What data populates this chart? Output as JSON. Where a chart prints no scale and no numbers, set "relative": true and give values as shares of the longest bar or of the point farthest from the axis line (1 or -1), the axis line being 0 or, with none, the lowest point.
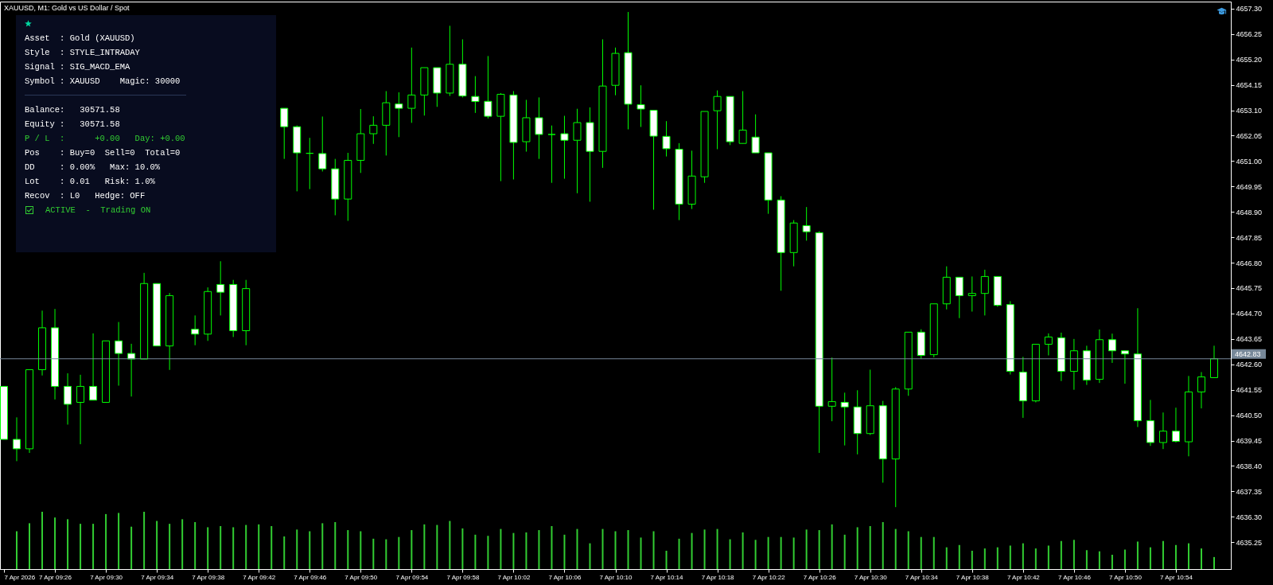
{
  "chart_data": [
    {
      "type": "candlestick",
      "title": "XAUUSD, M1: Gold vs US Dollar / Spot",
      "color": "#00ff00",
      "x": [
        "2026-04-07T09:22",
        "2026-04-07T09:23",
        "2026-04-07T09:24",
        "2026-04-07T09:25",
        "2026-04-07T09:26",
        "2026-04-07T09:27",
        "2026-04-07T09:28",
        "2026-04-07T09:29",
        "2026-04-07T09:30",
        "2026-04-07T09:31",
        "2026-04-07T09:32",
        "2026-04-07T09:33",
        "2026-04-07T09:34",
        "2026-04-07T09:35",
        "2026-04-07T09:37",
        "2026-04-07T09:38",
        "2026-04-07T09:39",
        "2026-04-07T09:40",
        "2026-04-07T09:41",
        "2026-04-07T09:44",
        "2026-04-07T09:45",
        "2026-04-07T09:46",
        "2026-04-07T09:47",
        "2026-04-07T09:48",
        "2026-04-07T09:49",
        "2026-04-07T09:50",
        "2026-04-07T09:51",
        "2026-04-07T09:52",
        "2026-04-07T09:53",
        "2026-04-07T09:54",
        "2026-04-07T09:55",
        "2026-04-07T09:56",
        "2026-04-07T09:57",
        "2026-04-07T09:58",
        "2026-04-07T09:59",
        "2026-04-07T10:00",
        "2026-04-07T10:01",
        "2026-04-07T10:02",
        "2026-04-07T10:03",
        "2026-04-07T10:04",
        "2026-04-07T10:05",
        "2026-04-07T10:06",
        "2026-04-07T10:07",
        "2026-04-07T10:08",
        "2026-04-07T10:09",
        "2026-04-07T10:10",
        "2026-04-07T10:11",
        "2026-04-07T10:12",
        "2026-04-07T10:13",
        "2026-04-07T10:14",
        "2026-04-07T10:15",
        "2026-04-07T10:16",
        "2026-04-07T10:17",
        "2026-04-07T10:18",
        "2026-04-07T10:19",
        "2026-04-07T10:20",
        "2026-04-07T10:21",
        "2026-04-07T10:22",
        "2026-04-07T10:23",
        "2026-04-07T10:24",
        "2026-04-07T10:25",
        "2026-04-07T10:26",
        "2026-04-07T10:27",
        "2026-04-07T10:28",
        "2026-04-07T10:29",
        "2026-04-07T10:30",
        "2026-04-07T10:31",
        "2026-04-07T10:32",
        "2026-04-07T10:33",
        "2026-04-07T10:34",
        "2026-04-07T10:35",
        "2026-04-07T10:36",
        "2026-04-07T10:37",
        "2026-04-07T10:38",
        "2026-04-07T10:39",
        "2026-04-07T10:40",
        "2026-04-07T10:41",
        "2026-04-07T10:42",
        "2026-04-07T10:43",
        "2026-04-07T10:44",
        "2026-04-07T10:45",
        "2026-04-07T10:46",
        "2026-04-07T10:47",
        "2026-04-07T10:48",
        "2026-04-07T10:49",
        "2026-04-07T10:50",
        "2026-04-07T10:51",
        "2026-04-07T10:52",
        "2026-04-07T10:53",
        "2026-04-07T10:54",
        "2026-04-07T10:55",
        "2026-04-07T10:56",
        "2026-04-07T10:57"
      ],
      "ohlc": [
        [
          4641.69,
          4641.69,
          4639.5,
          4639.5
        ],
        [
          4639.5,
          4640.41,
          4638.6,
          4639.11
        ],
        [
          4639.11,
          4642.38,
          4638.94,
          4642.38
        ],
        [
          4642.38,
          4644.82,
          4642.14,
          4644.11
        ],
        [
          4644.11,
          4644.89,
          4641.15,
          4641.69
        ],
        [
          4641.69,
          4642.23,
          4640.11,
          4640.95
        ],
        [
          4641.03,
          4642.17,
          4639.3,
          4641.69
        ],
        [
          4641.69,
          4643.88,
          4641.12,
          4641.12
        ],
        [
          4641.03,
          4643.57,
          4641.03,
          4643.57
        ],
        [
          4643.57,
          4644.35,
          4641.72,
          4643.05
        ],
        [
          4643.05,
          4643.45,
          4641.27,
          4642.82
        ],
        [
          4642.82,
          4646.38,
          4642.82,
          4645.94
        ],
        [
          4645.94,
          4645.94,
          4643.36,
          4643.36
        ],
        [
          4643.36,
          4645.55,
          4642.37,
          4645.44
        ],
        [
          4644.05,
          4644.62,
          4643.39,
          4643.85
        ],
        [
          4643.85,
          4645.78,
          4643.57,
          4645.61
        ],
        [
          4645.9,
          4646.86,
          4644.62,
          4645.58
        ],
        [
          4645.9,
          4646.09,
          4643.73,
          4643.99
        ],
        [
          4643.99,
          4646.09,
          4643.39,
          4645.73
        ],
        [
          4653.18,
          4653.18,
          4651.09,
          4652.42
        ],
        [
          4652.42,
          4652.47,
          4649.75,
          4651.34
        ],
        [
          4651.32,
          4651.96,
          4649.84,
          4651.32
        ],
        [
          4651.31,
          4652.84,
          4650.57,
          4650.68
        ],
        [
          4650.68,
          4651.09,
          4648.76,
          4649.43
        ],
        [
          4649.43,
          4651.34,
          4648.53,
          4651.03
        ],
        [
          4651.03,
          4653.15,
          4650.51,
          4652.13
        ],
        [
          4652.13,
          4652.85,
          4651.71,
          4652.48
        ],
        [
          4652.48,
          4653.89,
          4651.23,
          4653.41
        ],
        [
          4653.36,
          4653.84,
          4651.99,
          4653.18
        ],
        [
          4653.18,
          4655.69,
          4652.58,
          4653.73
        ],
        [
          4653.73,
          4654.86,
          4652.88,
          4654.86
        ],
        [
          4654.86,
          4654.86,
          4653.24,
          4653.81
        ],
        [
          4653.81,
          4656.59,
          4653.69,
          4655.0
        ],
        [
          4655.0,
          4656.03,
          4653.63,
          4653.69
        ],
        [
          4653.67,
          4654.51,
          4652.99,
          4653.46
        ],
        [
          4653.47,
          4655.34,
          4652.76,
          4652.85
        ],
        [
          4652.85,
          4653.81,
          4650.17,
          4653.76
        ],
        [
          4653.73,
          4653.89,
          4650.24,
          4651.77
        ],
        [
          4651.8,
          4653.53,
          4651.39,
          4652.79
        ],
        [
          4652.79,
          4653.63,
          4651.09,
          4652.1
        ],
        [
          4652.1,
          4652.47,
          4650.1,
          4652.1
        ],
        [
          4652.13,
          4652.87,
          4650.27,
          4651.86
        ],
        [
          4651.86,
          4653.16,
          4649.67,
          4652.59
        ],
        [
          4652.59,
          4653.22,
          4649.32,
          4651.4
        ],
        [
          4651.4,
          4656.03,
          4650.72,
          4654.1
        ],
        [
          4654.13,
          4655.69,
          4653.72,
          4655.45
        ],
        [
          4655.48,
          4657.16,
          4652.31,
          4653.35
        ],
        [
          4653.33,
          4654.13,
          4652.41,
          4653.15
        ],
        [
          4653.1,
          4653.1,
          4648.99,
          4652.03
        ],
        [
          4652.02,
          4652.65,
          4651.19,
          4651.51
        ],
        [
          4651.49,
          4651.74,
          4648.56,
          4649.22
        ],
        [
          4649.22,
          4651.43,
          4649.02,
          4650.38
        ],
        [
          4650.35,
          4653.05,
          4650.1,
          4653.05
        ],
        [
          4653.08,
          4653.92,
          4651.49,
          4653.67
        ],
        [
          4653.67,
          4653.67,
          4651.66,
          4651.8
        ],
        [
          4651.73,
          4653.89,
          4651.73,
          4652.28
        ],
        [
          4651.99,
          4652.93,
          4651.34,
          4651.34
        ],
        [
          4651.34,
          4651.34,
          4648.82,
          4649.39
        ],
        [
          4649.39,
          4649.55,
          4645.64,
          4647.22
        ],
        [
          4647.22,
          4648.56,
          4646.65,
          4648.44
        ],
        [
          4648.33,
          4649.1,
          4647.71,
          4648.08
        ],
        [
          4648.04,
          4648.1,
          4638.94,
          4640.87
        ],
        [
          4640.87,
          4642.88,
          4640.25,
          4641.06
        ],
        [
          4641.03,
          4641.43,
          4639.25,
          4640.84
        ],
        [
          4640.84,
          4641.53,
          4638.88,
          4639.74
        ],
        [
          4639.74,
          4642.38,
          4639.68,
          4640.89
        ],
        [
          4640.89,
          4641.09,
          4637.71,
          4638.69
        ],
        [
          4638.69,
          4641.66,
          4636.7,
          4641.58
        ],
        [
          4641.58,
          4643.93,
          4641.3,
          4643.93
        ],
        [
          4643.93,
          4644.05,
          4642.82,
          4642.97
        ],
        [
          4643.0,
          4645.1,
          4642.89,
          4645.1
        ],
        [
          4645.1,
          4646.65,
          4644.87,
          4646.2
        ],
        [
          4646.2,
          4646.2,
          4644.51,
          4645.44
        ],
        [
          4645.44,
          4646.23,
          4644.78,
          4645.53
        ],
        [
          4645.53,
          4646.51,
          4644.62,
          4646.23
        ],
        [
          4646.23,
          4646.23,
          4644.98,
          4645.04
        ],
        [
          4645.07,
          4645.21,
          4642.18,
          4642.31
        ],
        [
          4642.28,
          4642.91,
          4640.39,
          4641.09
        ],
        [
          4641.09,
          4643.43,
          4641.03,
          4643.43
        ],
        [
          4643.43,
          4643.88,
          4642.97,
          4643.73
        ],
        [
          4643.7,
          4643.91,
          4641.91,
          4642.31
        ],
        [
          4642.31,
          4643.65,
          4641.55,
          4643.16
        ],
        [
          4643.16,
          4643.37,
          4641.75,
          4641.95
        ],
        [
          4641.98,
          4644.04,
          4641.83,
          4643.62
        ],
        [
          4643.62,
          4643.87,
          4642.66,
          4643.16
        ],
        [
          4643.16,
          4643.16,
          4641.8,
          4643.03
        ],
        [
          4643.03,
          4644.92,
          4640.01,
          4640.27
        ],
        [
          4640.27,
          4641.13,
          4639.23,
          4639.37
        ],
        [
          4639.37,
          4640.61,
          4639.1,
          4639.84
        ],
        [
          4639.84,
          4640.81,
          4639.37,
          4639.42
        ],
        [
          4639.4,
          4642.12,
          4638.8,
          4641.46
        ],
        [
          4641.46,
          4642.28,
          4640.78,
          4642.08
        ],
        [
          4642.05,
          4643.37,
          4642.05,
          4642.83
        ]
      ],
      "colors": [
        "#ffffff",
        "#ffffff",
        "#000000",
        "#000000",
        "#ffffff",
        "#ffffff",
        "#000000",
        "#ffffff",
        "#000000",
        "#ffffff",
        "#ffffff",
        "#000000",
        "#ffffff",
        "#000000",
        "#ffffff",
        "#000000",
        "#ffffff",
        "#ffffff",
        "#000000",
        "#ffffff",
        "#ffffff",
        "#00ff00",
        "#ffffff",
        "#ffffff",
        "#000000",
        "#000000",
        "#000000",
        "#000000",
        "#ffffff",
        "#000000",
        "#000000",
        "#ffffff",
        "#000000",
        "#ffffff",
        "#ffffff",
        "#ffffff",
        "#000000",
        "#ffffff",
        "#000000",
        "#ffffff",
        "#00ff00",
        "#ffffff",
        "#000000",
        "#ffffff",
        "#000000",
        "#000000",
        "#ffffff",
        "#ffffff",
        "#ffffff",
        "#ffffff",
        "#ffffff",
        "#000000",
        "#000000",
        "#000000",
        "#ffffff",
        "#000000",
        "#ffffff",
        "#ffffff",
        "#ffffff",
        "#000000",
        "#ffffff",
        "#ffffff",
        "#000000",
        "#ffffff",
        "#ffffff",
        "#000000",
        "#ffffff",
        "#000000",
        "#000000",
        "#ffffff",
        "#000000",
        "#000000",
        "#ffffff",
        "#000000",
        "#000000",
        "#ffffff",
        "#ffffff",
        "#ffffff",
        "#000000",
        "#000000",
        "#ffffff",
        "#000000",
        "#ffffff",
        "#000000",
        "#ffffff",
        "#ffffff",
        "#ffffff",
        "#ffffff",
        "#000000",
        "#ffffff",
        "#000000",
        "#000000",
        "#000000"
      ],
      "xlim": [
        "2026-04-07T09:22",
        "2026-04-07T10:58"
      ],
      "xticks": [
        {
          "value": "2026-04-07T09:22",
          "label": "7 Apr 2026"
        },
        {
          "value": "2026-04-07T09:26",
          "label": "7 Apr 09:26"
        },
        {
          "value": "2026-04-07T09:30",
          "label": "7 Apr 09:30"
        },
        {
          "value": "2026-04-07T09:34",
          "label": "7 Apr 09:34"
        },
        {
          "value": "2026-04-07T09:38",
          "label": "7 Apr 09:38"
        },
        {
          "value": "2026-04-07T09:42",
          "label": "7 Apr 09:42"
        },
        {
          "value": "2026-04-07T09:46",
          "label": "7 Apr 09:46"
        },
        {
          "value": "2026-04-07T09:50",
          "label": "7 Apr 09:50"
        },
        {
          "value": "2026-04-07T09:54",
          "label": "7 Apr 09:54"
        },
        {
          "value": "2026-04-07T09:58",
          "label": "7 Apr 09:58"
        },
        {
          "value": "2026-04-07T10:02",
          "label": "7 Apr 10:02"
        },
        {
          "value": "2026-04-07T10:06",
          "label": "7 Apr 10:06"
        },
        {
          "value": "2026-04-07T10:10",
          "label": "7 Apr 10:10"
        },
        {
          "value": "2026-04-07T10:14",
          "label": "7 Apr 10:14"
        },
        {
          "value": "2026-04-07T10:18",
          "label": "7 Apr 10:18"
        },
        {
          "value": "2026-04-07T10:22",
          "label": "7 Apr 10:22"
        },
        {
          "value": "2026-04-07T10:26",
          "label": "7 Apr 10:26"
        },
        {
          "value": "2026-04-07T10:30",
          "label": "7 Apr 10:30"
        },
        {
          "value": "2026-04-07T10:34",
          "label": "7 Apr 10:34"
        },
        {
          "value": "2026-04-07T10:38",
          "label": "7 Apr 10:38"
        },
        {
          "value": "2026-04-07T10:42",
          "label": "7 Apr 10:42"
        },
        {
          "value": "2026-04-07T10:46",
          "label": "7 Apr 10:46"
        },
        {
          "value": "2026-04-07T10:50",
          "label": "7 Apr 10:50"
        },
        {
          "value": "2026-04-07T10:54",
          "label": "7 Apr 10:54"
        }
      ],
      "ylim": [
        4634.14,
        4657.59
      ],
      "yticks": [
        4635.25,
        {
          "value": 4636.3,
          "label": "4636.30"
        },
        4637.35,
        {
          "value": 4638.4,
          "label": "4638.40"
        },
        4639.45,
        {
          "value": 4640.5,
          "label": "4640.50"
        },
        4641.55,
        {
          "value": 4642.6,
          "label": "4642.60"
        },
        4643.65,
        {
          "value": 4644.7,
          "label": "4644.70"
        },
        4645.75,
        {
          "value": 4646.8,
          "label": "4646.80"
        },
        4647.85,
        {
          "value": 4648.9,
          "label": "4648.90"
        },
        4649.95,
        {
          "value": 4651.0,
          "label": "4651.00"
        },
        4652.05,
        {
          "value": 4653.1,
          "label": "4653.10"
        },
        4654.15,
        {
          "value": 4655.2,
          "label": "4655.20"
        },
        4656.25,
        {
          "value": 4657.3,
          "label": "4657.30"
        }
      ],
      "ref_lines": [
        {
          "axis": "y",
          "value": 4642.83,
          "label": "4642.83",
          "color": "#778899"
        }
      ]
    },
    {
      "type": "bar",
      "relative": true,
      "color": "#32cd32",
      "tick_labels": false,
      "x": [
        "2026-04-07T09:23",
        "2026-04-07T09:24",
        "2026-04-07T09:25",
        "2026-04-07T09:26",
        "2026-04-07T09:27",
        "2026-04-07T09:28",
        "2026-04-07T09:29",
        "2026-04-07T09:30",
        "2026-04-07T09:31",
        "2026-04-07T09:32",
        "2026-04-07T09:33",
        "2026-04-07T09:34",
        "2026-04-07T09:35",
        "2026-04-07T09:36",
        "2026-04-07T09:37",
        "2026-04-07T09:38",
        "2026-04-07T09:39",
        "2026-04-07T09:40",
        "2026-04-07T09:41",
        "2026-04-07T09:42",
        "2026-04-07T09:43",
        "2026-04-07T09:44",
        "2026-04-07T09:45",
        "2026-04-07T09:46",
        "2026-04-07T09:47",
        "2026-04-07T09:48",
        "2026-04-07T09:49",
        "2026-04-07T09:50",
        "2026-04-07T09:51",
        "2026-04-07T09:52",
        "2026-04-07T09:53",
        "2026-04-07T09:54",
        "2026-04-07T09:55",
        "2026-04-07T09:56",
        "2026-04-07T09:57",
        "2026-04-07T09:58",
        "2026-04-07T09:59",
        "2026-04-07T10:00",
        "2026-04-07T10:01",
        "2026-04-07T10:02",
        "2026-04-07T10:03",
        "2026-04-07T10:04",
        "2026-04-07T10:05",
        "2026-04-07T10:06",
        "2026-04-07T10:07",
        "2026-04-07T10:08",
        "2026-04-07T10:09",
        "2026-04-07T10:10",
        "2026-04-07T10:11",
        "2026-04-07T10:12",
        "2026-04-07T10:13",
        "2026-04-07T10:14",
        "2026-04-07T10:15",
        "2026-04-07T10:16",
        "2026-04-07T10:17",
        "2026-04-07T10:18",
        "2026-04-07T10:19",
        "2026-04-07T10:20",
        "2026-04-07T10:21",
        "2026-04-07T10:22",
        "2026-04-07T10:23",
        "2026-04-07T10:24",
        "2026-04-07T10:25",
        "2026-04-07T10:26",
        "2026-04-07T10:27",
        "2026-04-07T10:28",
        "2026-04-07T10:29",
        "2026-04-07T10:30",
        "2026-04-07T10:31",
        "2026-04-07T10:32",
        "2026-04-07T10:33",
        "2026-04-07T10:34",
        "2026-04-07T10:35",
        "2026-04-07T10:36",
        "2026-04-07T10:37",
        "2026-04-07T10:38",
        "2026-04-07T10:39",
        "2026-04-07T10:40",
        "2026-04-07T10:41",
        "2026-04-07T10:42",
        "2026-04-07T10:43",
        "2026-04-07T10:44",
        "2026-04-07T10:45",
        "2026-04-07T10:46",
        "2026-04-07T10:47",
        "2026-04-07T10:48",
        "2026-04-07T10:49",
        "2026-04-07T10:50",
        "2026-04-07T10:51",
        "2026-04-07T10:52",
        "2026-04-07T10:53",
        "2026-04-07T10:54",
        "2026-04-07T10:55",
        "2026-04-07T10:56",
        "2026-04-07T10:57"
      ],
      "xlim": [
        "2026-04-07T09:22",
        "2026-04-07T10:58"
      ],
      "values": [
        0.66,
        0.8,
        1,
        0.9,
        0.87,
        0.79,
        0.79,
        0.96,
        0.98,
        0.74,
        1,
        0.84,
        0.79,
        0.87,
        0.82,
        0.73,
        0.75,
        0.73,
        0.77,
        0.78,
        0.75,
        0.57,
        0.69,
        0.66,
        0.8,
        0.82,
        0.68,
        0.66,
        0.53,
        0.52,
        0.56,
        0.68,
        0.78,
        0.77,
        0.84,
        0.71,
        0.6,
        0.58,
        0.7,
        0.63,
        0.64,
        0.68,
        0.75,
        0.6,
        0.7,
        0.45,
        0.7,
        0.66,
        0.68,
        0.55,
        0.66,
        0.32,
        0.53,
        0.63,
        0.69,
        0.7,
        0.52,
        0.64,
        0.51,
        0.56,
        0.56,
        0.55,
        0.69,
        0.68,
        0.78,
        0.6,
        0.73,
        0.75,
        0.82,
        0.7,
        0.66,
        0.56,
        0.56,
        0.38,
        0.42,
        0.32,
        0.36,
        0.38,
        0.41,
        0.45,
        0.36,
        0.41,
        0.49,
        0.51,
        0.33,
        0.31,
        0.25,
        0.34,
        0.48,
        0.38,
        0.49,
        0.42,
        0.45,
        0.36,
        0.21
      ]
    },
    {
      "type": "other",
      "annotations": [
        "Asset  : Gold (XAUUSD)",
        "Style  : STYLE_INTRADAY",
        "Signal : SIG_MACD_EMA",
        "Symbol : XAUUSD    Magic: 30000",
        "Balance:   30571.58",
        "Equity :   30571.58",
        "P / L  :      +0.00   Day: +0.00",
        "Pos    : Buy=0  Sell=0  Total=0",
        "DD     : 0.00%   Max: 10.0%",
        "Lot    : 0.01   Risk: 1.0%",
        "Recov  : L0   Hedge: OFF",
        "ACTIVE  -  Trading ON"
      ],
      "colors": [
        "#ffffff",
        "#ffffff",
        "#ffffff",
        "#ffffff",
        "#ffffff",
        "#ffffff",
        "#32cd32",
        "#ffffff",
        "#ffffff",
        "#ffffff",
        "#ffffff",
        "#32cd32"
      ]
    }
  ]
}
